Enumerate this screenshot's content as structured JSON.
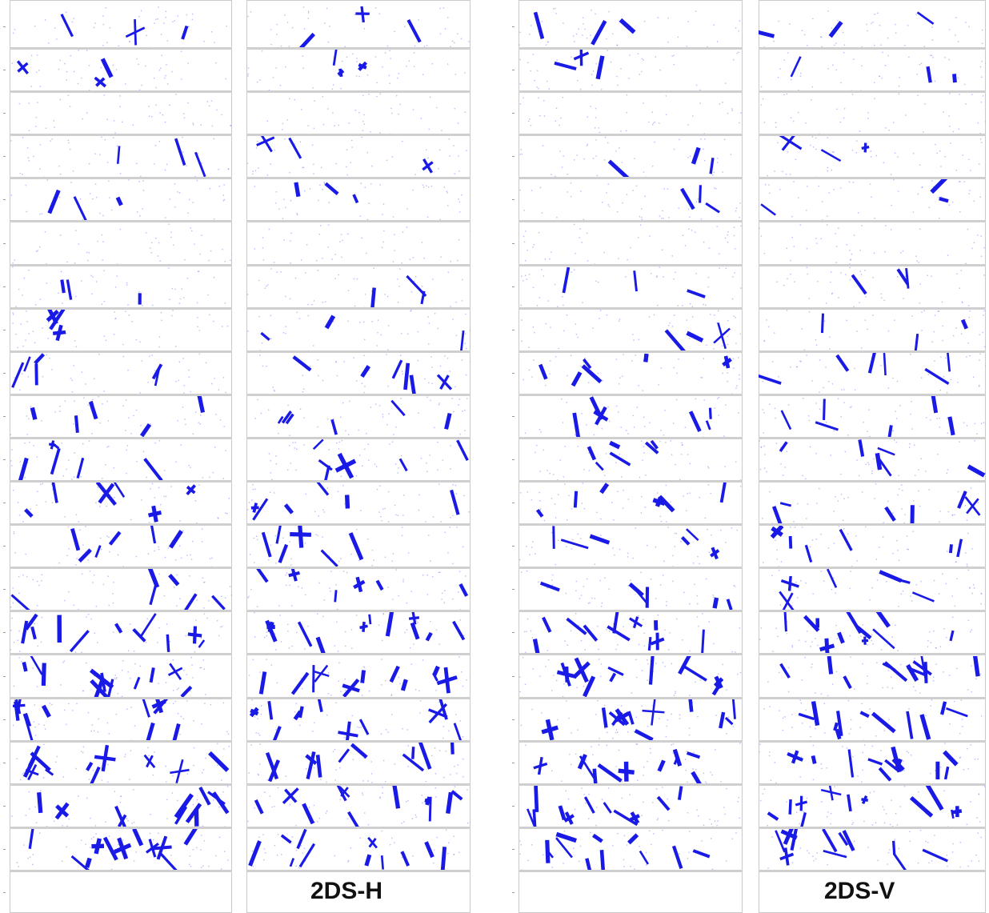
{
  "panels": [
    {
      "id": "left-a",
      "label": ""
    },
    {
      "id": "left-b",
      "label": "2DS-H"
    },
    {
      "id": "right-a",
      "label": ""
    },
    {
      "id": "right-b",
      "label": "2DS-V"
    }
  ],
  "strip_count": 20,
  "colors": {
    "particle": "#1a1ae6",
    "frame": "#c9c9c9",
    "separator": "#cfcfcf",
    "dots": "#8b8bf0"
  }
}
